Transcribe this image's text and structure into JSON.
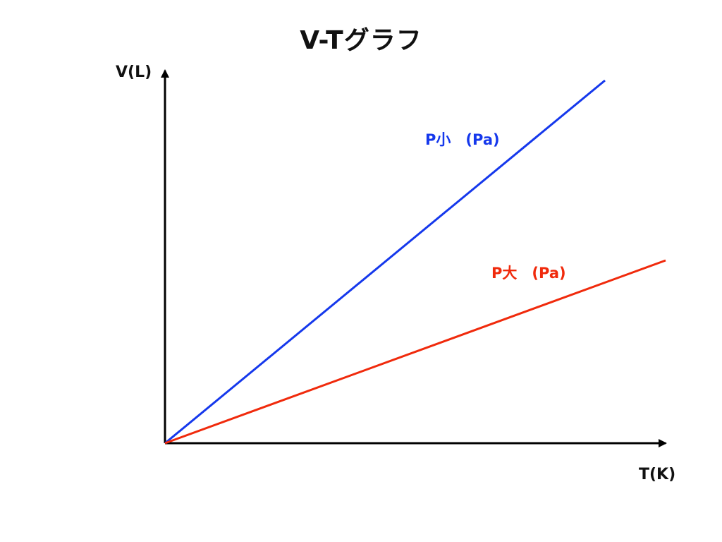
{
  "title": "V-Tグラフ",
  "axes": {
    "y_label": "V(L)",
    "x_label": "T(K)"
  },
  "lines": [
    {
      "label": "P小　(Pa)",
      "color": "#1538ec",
      "relative_slope": "steeper"
    },
    {
      "label": "P大　(Pa)",
      "color": "#f02a0c",
      "relative_slope": "shallower"
    }
  ],
  "colors": {
    "axis": "#000000",
    "text": "#111111"
  }
}
